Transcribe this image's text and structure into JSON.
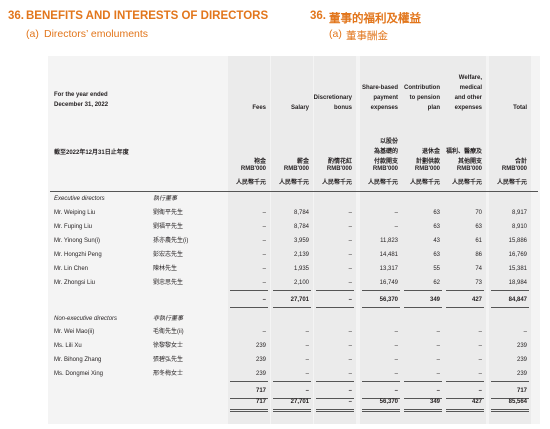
{
  "header": {
    "number": "36.",
    "title": "BENEFITS AND INTERESTS OF DIRECTORS",
    "number_zh": "36.",
    "title_zh": "董事的福利及權益",
    "sub_label": "(a)",
    "subtitle": "Directors’ emoluments",
    "sub_label_zh": "(a)",
    "subtitle_zh": "董事酬金"
  },
  "table": {
    "period": [
      "For the year ended",
      "December 31, 2022"
    ],
    "period_zh": "截至2022年12月31日止年度",
    "columns": [
      {
        "en": [
          "Fees"
        ],
        "zh": [
          "袍金"
        ],
        "unit": "RMB'000",
        "unit_zh": "人民幣千元"
      },
      {
        "en": [
          "Salary"
        ],
        "zh": [
          "薪金"
        ],
        "unit": "RMB'000",
        "unit_zh": "人民幣千元"
      },
      {
        "en": [
          "Discretionary",
          "bonus"
        ],
        "zh": [
          "酌情花紅"
        ],
        "unit": "RMB'000",
        "unit_zh": "人民幣千元"
      },
      {
        "en": [
          "Share-based",
          "payment",
          "expenses"
        ],
        "zh": [
          "以股份",
          "為基礎的",
          "付款開支"
        ],
        "unit": "RMB'000",
        "unit_zh": "人民幣千元"
      },
      {
        "en": [
          "Contribution",
          "to pension",
          "plan"
        ],
        "zh": [
          "退休金",
          "計劃供款"
        ],
        "unit": "RMB'000",
        "unit_zh": "人民幣千元"
      },
      {
        "en": [
          "Welfare,",
          "medical",
          "and other",
          "expenses"
        ],
        "zh": [
          "福利、醫療及",
          "其他開支"
        ],
        "unit": "RMB'000",
        "unit_zh": "人民幣千元"
      },
      {
        "en": [
          "Total"
        ],
        "zh": [
          "合計"
        ],
        "unit": "RMB'000",
        "unit_zh": "人民幣千元"
      }
    ],
    "sections": [
      {
        "title": "Executive directors",
        "title_zh": "執行董事",
        "rows": [
          {
            "name": "Mr. Weiping Liu",
            "name_zh": "劉衛平先生",
            "values": [
              "–",
              "8,784",
              "–",
              "–",
              "63",
              "70",
              "8,917"
            ]
          },
          {
            "name": "Mr. Fuping Liu",
            "name_zh": "劉福平先生",
            "values": [
              "–",
              "8,784",
              "–",
              "–",
              "63",
              "63",
              "8,910"
            ]
          },
          {
            "name": "Mr. Yinong Sun(i)",
            "name_zh": "孫亦農先生(i)",
            "values": [
              "–",
              "3,959",
              "–",
              "11,823",
              "43",
              "61",
              "15,886"
            ]
          },
          {
            "name": "Mr. Hongzhi Peng",
            "name_zh": "彭宏志先生",
            "values": [
              "–",
              "2,139",
              "–",
              "14,481",
              "63",
              "86",
              "16,769"
            ]
          },
          {
            "name": "Mr. Lin Chen",
            "name_zh": "陳林先生",
            "values": [
              "–",
              "1,935",
              "–",
              "13,317",
              "55",
              "74",
              "15,381"
            ]
          },
          {
            "name": "Mr. Zhongsi Liu",
            "name_zh": "劉忠思先生",
            "values": [
              "–",
              "2,100",
              "–",
              "16,749",
              "62",
              "73",
              "18,984"
            ]
          }
        ],
        "subtotal": [
          "–",
          "27,701",
          "–",
          "56,370",
          "349",
          "427",
          "84,847"
        ]
      },
      {
        "title": "Non-executive directors",
        "title_zh": "非執行董事",
        "rows": [
          {
            "name": "Mr. Wei Mao(ii)",
            "name_zh": "毛衛先生(ii)",
            "values": [
              "–",
              "–",
              "–",
              "–",
              "–",
              "–",
              "–"
            ]
          },
          {
            "name": "Ms. Lili Xu",
            "name_zh": "徐黎黎女士",
            "values": [
              "239",
              "–",
              "–",
              "–",
              "–",
              "–",
              "239"
            ]
          },
          {
            "name": "Mr. Bihong Zhang",
            "name_zh": "張碧弘先生",
            "values": [
              "239",
              "–",
              "–",
              "–",
              "–",
              "–",
              "239"
            ]
          },
          {
            "name": "Ms. Dongmei Xing",
            "name_zh": "邢冬梅女士",
            "values": [
              "239",
              "–",
              "–",
              "–",
              "–",
              "–",
              "239"
            ]
          }
        ],
        "subtotal": [
          "717",
          "–",
          "–",
          "–",
          "–",
          "–",
          "717"
        ]
      }
    ],
    "total": [
      "717",
      "27,701",
      "–",
      "56,370",
      "349",
      "427",
      "85,564"
    ]
  }
}
